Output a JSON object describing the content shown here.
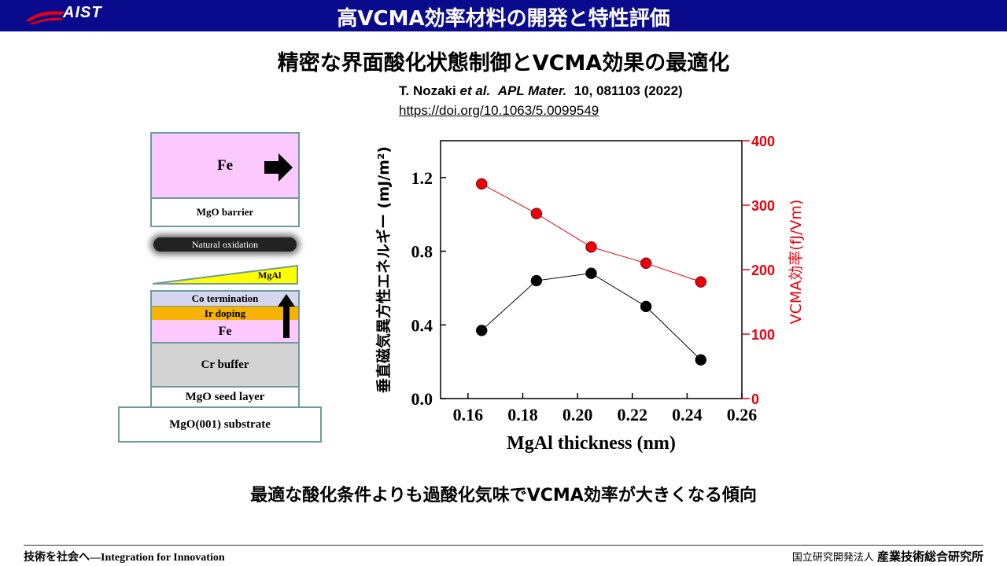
{
  "header": {
    "logo_text": "AIST",
    "title": "高VCMA効率材料の開発と特性評価"
  },
  "subtitle": "精密な界面酸化状態制御とVCMA効果の最適化",
  "reference": {
    "authors": "T. Nozaki",
    "etal": "et al.",
    "journal": "APL Mater.",
    "volume_pages": "10, 081103 (2022)",
    "doi": "https://doi.org/10.1063/5.0099549"
  },
  "stack": {
    "fe_top": "Fe",
    "mgo_barrier": "MgO barrier",
    "natural_oxidation": "Natural oxidation",
    "mgal": "MgAl",
    "co_termination": "Co termination",
    "ir_doping": "Ir doping",
    "fe": "Fe",
    "cr_buffer": "Cr buffer",
    "mgo_seed": "MgO seed layer",
    "substrate": "MgO(001) substrate"
  },
  "chart_data": {
    "type": "scatter",
    "xlabel": "MgAl thickness (nm)",
    "ylabel_left": "垂直磁気異方性エネルギー (mJ/m²)",
    "ylabel_right": "VCMA効率(fJ/Vm)",
    "xlim": [
      0.15,
      0.26
    ],
    "ylim_left": [
      0.0,
      1.4
    ],
    "ylim_right": [
      0,
      400
    ],
    "x_ticks": [
      "0.16",
      "0.18",
      "0.20",
      "0.22",
      "0.24",
      "0.26"
    ],
    "y_ticks_left": [
      "0.0",
      "0.4",
      "0.8",
      "1.2"
    ],
    "y_ticks_right": [
      "0",
      "100",
      "200",
      "300",
      "400"
    ],
    "series": [
      {
        "axis": "left",
        "color": "#000000",
        "x": [
          0.165,
          0.185,
          0.205,
          0.225,
          0.245
        ],
        "y": [
          0.37,
          0.64,
          0.68,
          0.5,
          0.21
        ]
      },
      {
        "axis": "right",
        "color": "#e8000b",
        "x": [
          0.165,
          0.185,
          0.205,
          0.225,
          0.245
        ],
        "y": [
          333,
          287,
          235,
          210,
          181
        ]
      }
    ]
  },
  "conclusion": "最適な酸化条件よりも過酸化気味でVCMA効率が大きくなる傾向",
  "footer": {
    "left": "技術を社会へ—Integration for Innovation",
    "right_small": "国立研究開発法人",
    "right_big": "産業技術総合研究所"
  }
}
